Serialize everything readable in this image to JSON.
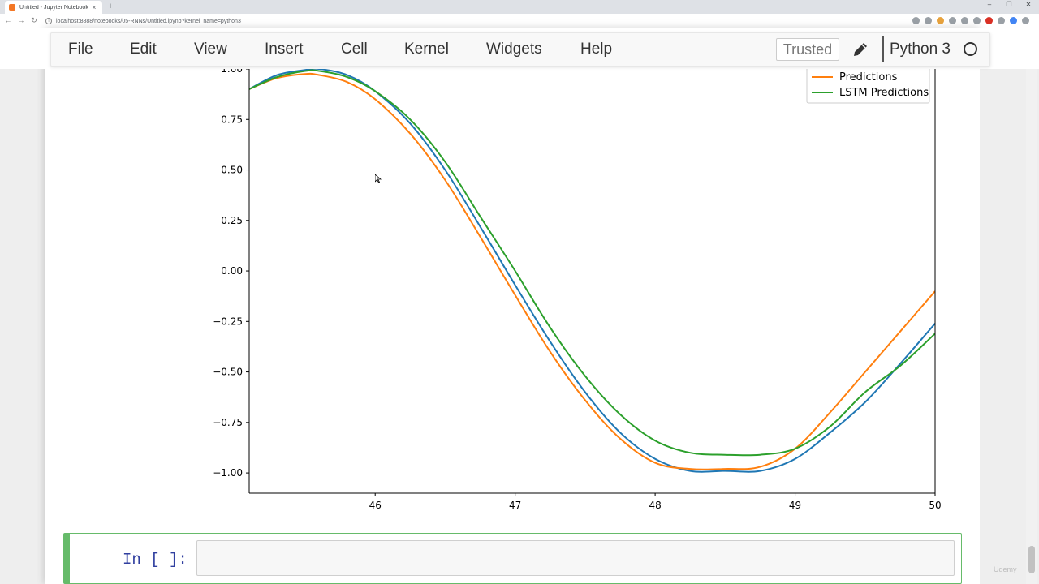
{
  "browser": {
    "tab_title": "Untitled - Jupyter Notebook",
    "tab_close": "×",
    "new_tab": "+",
    "window_controls": [
      "–",
      "❐",
      "✕"
    ],
    "url": "localhost:8888/notebooks/05-RNNs/Untitled.ipynb?kernel_name=python3",
    "nav": {
      "back": "←",
      "forward": "→",
      "reload": "↻"
    }
  },
  "menubar": {
    "items": [
      "File",
      "Edit",
      "View",
      "Insert",
      "Cell",
      "Kernel",
      "Widgets",
      "Help"
    ],
    "trusted_label": "Trusted",
    "kernel_name": "Python 3"
  },
  "cell": {
    "prompt": "In [ ]:",
    "value": ""
  },
  "watermark": "Udemy",
  "chart_data": {
    "type": "line",
    "xlim": [
      45.1,
      50
    ],
    "ylim": [
      -1.1,
      1.0
    ],
    "xticks": [
      46,
      47,
      48,
      49,
      50
    ],
    "xtick_labels": [
      "46",
      "47",
      "48",
      "49",
      "50"
    ],
    "yticks": [
      1.0,
      0.75,
      0.5,
      0.25,
      0.0,
      -0.25,
      -0.5,
      -0.75,
      -1.0
    ],
    "ytick_labels": [
      "1.00",
      "0.75",
      "0.50",
      "0.25",
      "0.00",
      "−0.25",
      "−0.50",
      "−0.75",
      "−1.00"
    ],
    "legend_position": "top-right",
    "legend": [
      "Predictions",
      "LSTM Predictions"
    ],
    "colors": {
      "test": "#1f77b4",
      "predictions": "#ff7f0e",
      "lstm": "#2ca02c"
    },
    "series": [
      {
        "key": "test",
        "x": [
          45.1,
          45.3,
          45.5,
          45.6,
          45.8,
          46.0,
          46.25,
          46.5,
          46.75,
          47.0,
          47.25,
          47.5,
          47.75,
          48.0,
          48.25,
          48.5,
          48.75,
          49.0,
          49.25,
          49.5,
          49.75,
          50.0
        ],
        "values": [
          0.9,
          0.97,
          0.995,
          1.0,
          0.97,
          0.89,
          0.73,
          0.5,
          0.22,
          -0.07,
          -0.35,
          -0.6,
          -0.8,
          -0.93,
          -0.99,
          -0.99,
          -0.99,
          -0.93,
          -0.8,
          -0.65,
          -0.46,
          -0.26
        ]
      },
      {
        "key": "predictions",
        "x": [
          45.1,
          45.3,
          45.5,
          45.6,
          45.8,
          46.0,
          46.25,
          46.5,
          46.75,
          47.0,
          47.25,
          47.5,
          47.75,
          48.0,
          48.25,
          48.5,
          48.75,
          49.0,
          49.25,
          49.5,
          49.75,
          50.0
        ],
        "values": [
          0.9,
          0.955,
          0.975,
          0.97,
          0.935,
          0.85,
          0.68,
          0.45,
          0.17,
          -0.12,
          -0.4,
          -0.64,
          -0.83,
          -0.95,
          -0.98,
          -0.98,
          -0.97,
          -0.88,
          -0.7,
          -0.5,
          -0.3,
          -0.1
        ]
      },
      {
        "key": "lstm",
        "x": [
          45.1,
          45.3,
          45.5,
          45.6,
          45.8,
          46.0,
          46.25,
          46.5,
          46.75,
          47.0,
          47.25,
          47.5,
          47.75,
          48.0,
          48.25,
          48.5,
          48.75,
          49.0,
          49.25,
          49.5,
          49.75,
          50.0
        ],
        "values": [
          0.9,
          0.96,
          0.99,
          0.99,
          0.96,
          0.89,
          0.75,
          0.54,
          0.27,
          0.0,
          -0.28,
          -0.52,
          -0.71,
          -0.84,
          -0.9,
          -0.91,
          -0.91,
          -0.88,
          -0.77,
          -0.6,
          -0.47,
          -0.31
        ]
      }
    ]
  }
}
